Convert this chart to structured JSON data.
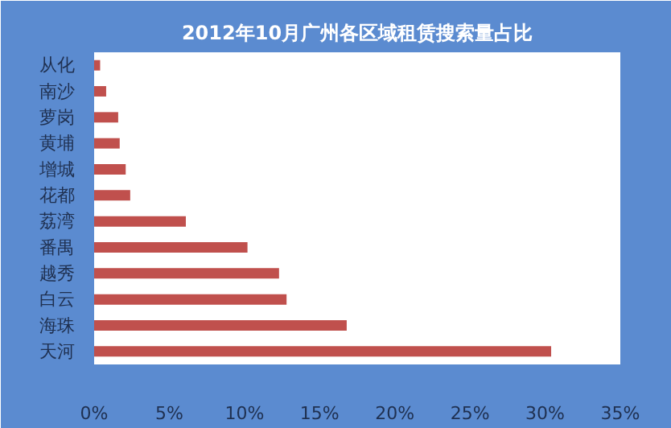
{
  "chart_data": {
    "type": "bar",
    "orientation": "horizontal",
    "title": "2012年10月广州各区域租赁搜索量占比",
    "categories": [
      "从化",
      "南沙",
      "萝岗",
      "黄埔",
      "增城",
      "花都",
      "荔湾",
      "番禺",
      "越秀",
      "白云",
      "海珠",
      "天河"
    ],
    "values": [
      0.4,
      0.8,
      1.6,
      1.7,
      2.1,
      2.4,
      6.1,
      10.2,
      12.3,
      12.8,
      16.8,
      30.4
    ],
    "color": "#c0504d",
    "xlim": [
      0,
      35
    ],
    "xticks": [
      {
        "value": 0,
        "label": "0%"
      },
      {
        "value": 5,
        "label": "5%"
      },
      {
        "value": 10,
        "label": "10%"
      },
      {
        "value": 15,
        "label": "15%"
      },
      {
        "value": 20,
        "label": "20%"
      },
      {
        "value": 25,
        "label": "25%"
      },
      {
        "value": 30,
        "label": "30%"
      },
      {
        "value": 35,
        "label": "35%"
      }
    ],
    "grid": false
  }
}
